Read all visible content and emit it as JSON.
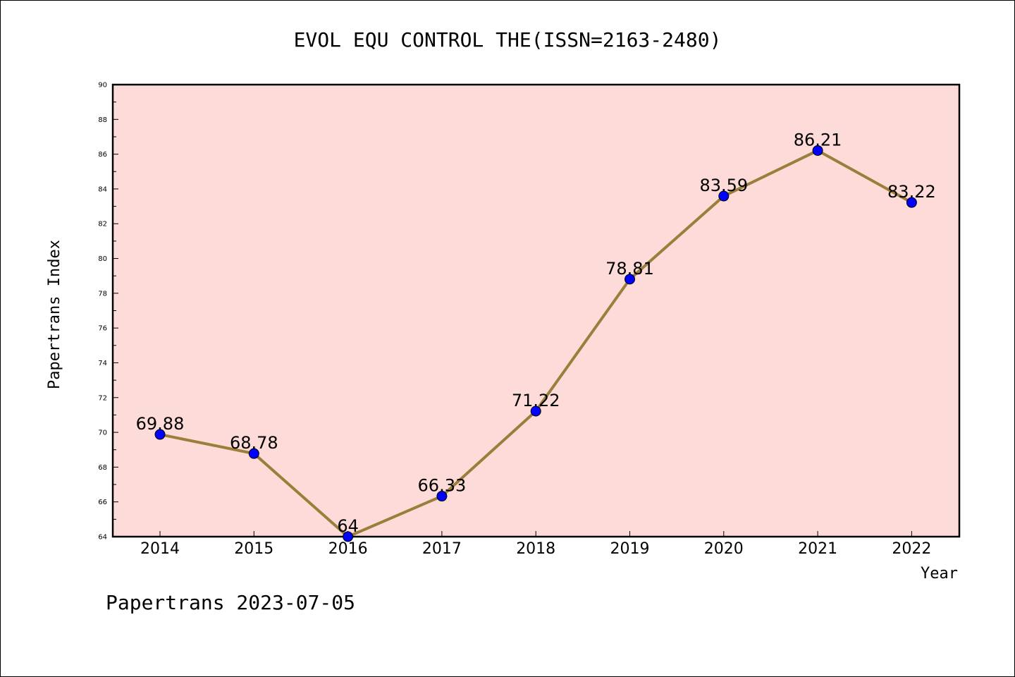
{
  "chart_data": {
    "type": "line",
    "title": "EVOL EQU CONTROL THE(ISSN=2163-2480)",
    "xlabel": "Year",
    "ylabel": "Papertrans Index",
    "categories": [
      "2014",
      "2015",
      "2016",
      "2017",
      "2018",
      "2019",
      "2020",
      "2021",
      "2022"
    ],
    "values": [
      69.88,
      68.78,
      64,
      66.33,
      71.22,
      78.81,
      83.59,
      86.21,
      83.22
    ],
    "data_labels": [
      "69.88",
      "68.78",
      "64",
      "66.33",
      "71.22",
      "78.81",
      "83.59",
      "86.21",
      "83.22"
    ],
    "ylim": [
      64,
      90
    ],
    "yticks": [
      "64",
      "66",
      "68",
      "70",
      "72",
      "74",
      "76",
      "78",
      "80",
      "82",
      "84",
      "86",
      "88",
      "90"
    ],
    "grid": false,
    "colors": {
      "plot_background": "#fddbd8",
      "line": "#9a7e3a",
      "marker": "#0000ff"
    }
  },
  "footer": "Papertrans 2023-07-05"
}
